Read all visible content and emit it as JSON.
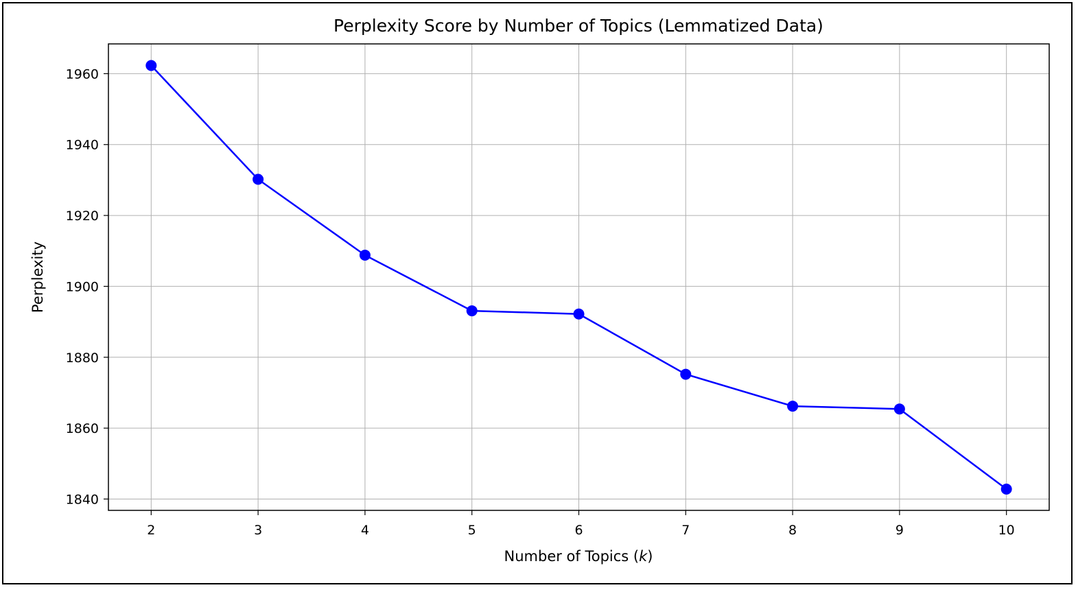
{
  "chart_data": {
    "type": "line",
    "title": "Perplexity Score by Number of Topics (Lemmatized Data)",
    "xlabel_prefix": "Number of Topics (",
    "xlabel_var": "k",
    "xlabel_suffix": ")",
    "ylabel": "Perplexity",
    "x": [
      2,
      3,
      4,
      5,
      6,
      7,
      8,
      9,
      10
    ],
    "series": [
      {
        "values": [
          1962.3,
          1930.2,
          1908.8,
          1893.1,
          1892.2,
          1875.2,
          1866.2,
          1865.4,
          1842.8
        ],
        "color": "#0000ff",
        "marker": "circle"
      }
    ],
    "x_ticks": [
      "2",
      "3",
      "4",
      "5",
      "6",
      "7",
      "8",
      "9",
      "10"
    ],
    "y_ticks": [
      "1840",
      "1860",
      "1880",
      "1900",
      "1920",
      "1940",
      "1960"
    ],
    "xlim": [
      1.6,
      10.4
    ],
    "ylim": [
      1836.8,
      1968.4
    ],
    "grid": true
  }
}
